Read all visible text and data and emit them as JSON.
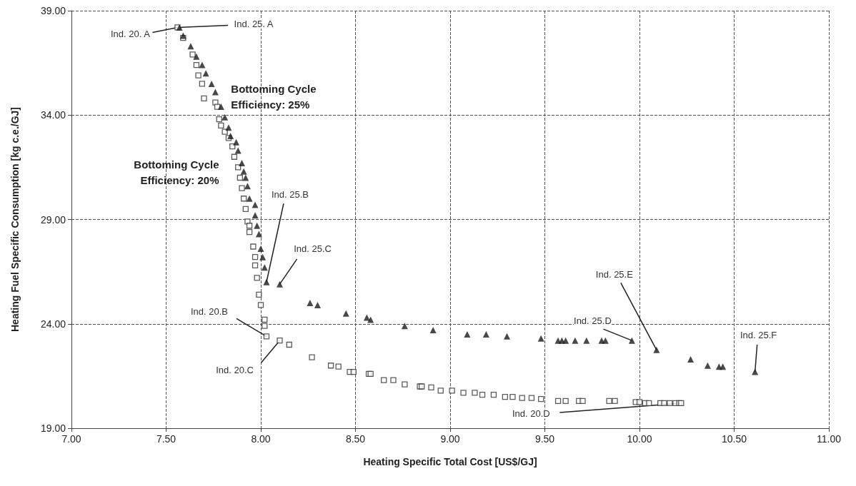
{
  "chart_data": {
    "type": "scatter",
    "xlabel": "Heating Specific Total Cost [US$/GJ]",
    "ylabel": "Heating Fuel Specific Consumption [kg c.e./GJ]",
    "xlim": [
      7,
      11
    ],
    "xticks": [
      {
        "value": 7,
        "label": "7.00"
      },
      {
        "value": 7.5,
        "label": "7.50"
      },
      {
        "value": 8,
        "label": "8.00"
      },
      {
        "value": 8.5,
        "label": "8.50"
      },
      {
        "value": 9,
        "label": "9.00"
      },
      {
        "value": 9.5,
        "label": "9.50"
      },
      {
        "value": 10,
        "label": "10.00"
      },
      {
        "value": 10.5,
        "label": "10.50"
      },
      {
        "value": 11,
        "label": "11.00"
      }
    ],
    "ylim": [
      19,
      39
    ],
    "yticks": [
      {
        "value": 19,
        "label": "19.00"
      },
      {
        "value": 24,
        "label": "24.00"
      },
      {
        "value": 29,
        "label": "29.00"
      },
      {
        "value": 34,
        "label": "34.00"
      },
      {
        "value": 39,
        "label": "39.00"
      }
    ],
    "grid": true,
    "legend": false,
    "series": [
      {
        "name": "Bottoming Cycle Efficiency: 25%",
        "color": "#1a1a1a",
        "marker": "triangle",
        "x": [
          7.57,
          7.59,
          7.63,
          7.66,
          7.69,
          7.71,
          7.74,
          7.76,
          7.79,
          7.81,
          7.83,
          7.84,
          7.87,
          7.88,
          7.9,
          7.91,
          7.92,
          7.93,
          7.94,
          7.97,
          7.97,
          7.98,
          7.99,
          8.0,
          8.01,
          8.02,
          8.03,
          8.1,
          8.26,
          8.3,
          8.45,
          8.56,
          8.58,
          8.76,
          8.91,
          9.09,
          9.19,
          9.3,
          9.48,
          9.57,
          9.59,
          9.61,
          9.66,
          9.72,
          9.8,
          9.82,
          9.96,
          10.09,
          10.27,
          10.36,
          10.42,
          10.44,
          10.61
        ],
        "values": [
          38.2,
          37.8,
          37.3,
          36.8,
          36.4,
          36.0,
          35.5,
          35.1,
          34.4,
          33.9,
          33.4,
          33.0,
          32.7,
          32.3,
          31.7,
          31.3,
          31.0,
          30.6,
          30.0,
          29.7,
          29.2,
          28.7,
          28.3,
          27.6,
          27.2,
          26.7,
          26.0,
          25.9,
          25.0,
          24.9,
          24.5,
          24.3,
          24.2,
          23.9,
          23.7,
          23.5,
          23.5,
          23.4,
          23.3,
          23.2,
          23.2,
          23.2,
          23.2,
          23.2,
          23.2,
          23.2,
          23.2,
          22.75,
          22.3,
          22.0,
          21.95,
          21.95,
          21.7
        ]
      },
      {
        "name": "Bottoming Cycle Efficiency: 20%",
        "color": "#333333",
        "marker": "square",
        "x": [
          7.56,
          7.59,
          7.64,
          7.66,
          7.67,
          7.69,
          7.7,
          7.76,
          7.77,
          7.78,
          7.79,
          7.81,
          7.83,
          7.85,
          7.86,
          7.88,
          7.89,
          7.9,
          7.91,
          7.92,
          7.93,
          7.94,
          7.94,
          7.96,
          7.97,
          7.97,
          7.98,
          7.99,
          8.0,
          8.02,
          8.02,
          8.03,
          8.1,
          8.15,
          8.27,
          8.37,
          8.41,
          8.47,
          8.49,
          8.57,
          8.58,
          8.65,
          8.7,
          8.76,
          8.84,
          8.85,
          8.9,
          8.95,
          9.01,
          9.07,
          9.13,
          9.17,
          9.23,
          9.29,
          9.33,
          9.38,
          9.43,
          9.48,
          9.57,
          9.61,
          9.68,
          9.7,
          9.84,
          9.87,
          9.98,
          10.0,
          10.03,
          10.05,
          10.11,
          10.13,
          10.16,
          10.19,
          10.21,
          10.22
        ],
        "values": [
          38.2,
          37.7,
          36.9,
          36.4,
          35.9,
          35.5,
          34.8,
          34.6,
          34.4,
          33.8,
          33.5,
          33.2,
          32.9,
          32.5,
          32.0,
          31.5,
          31.0,
          30.5,
          30.0,
          29.5,
          28.9,
          28.7,
          28.4,
          27.7,
          27.2,
          26.8,
          26.2,
          25.4,
          24.9,
          24.2,
          23.9,
          23.4,
          23.2,
          23.0,
          22.4,
          22.0,
          21.95,
          21.7,
          21.7,
          21.6,
          21.6,
          21.3,
          21.3,
          21.1,
          21.0,
          21.0,
          20.95,
          20.8,
          20.8,
          20.7,
          20.7,
          20.6,
          20.6,
          20.5,
          20.5,
          20.45,
          20.45,
          20.4,
          20.3,
          20.3,
          20.3,
          20.3,
          20.3,
          20.3,
          20.25,
          20.25,
          20.2,
          20.2,
          20.2,
          20.2,
          20.2,
          20.2,
          20.2,
          20.2
        ]
      }
    ],
    "annotations": [
      {
        "text": "Ind. 20. A",
        "x": 7.56,
        "y": 38.2
      },
      {
        "text": "Ind. 25. A",
        "x": 7.57,
        "y": 38.2
      },
      {
        "text": "Ind. 25.B",
        "x": 8.03,
        "y": 26.0
      },
      {
        "text": "Ind. 25.C",
        "x": 8.1,
        "y": 25.9
      },
      {
        "text": "Ind. 20.B",
        "x": 8.03,
        "y": 23.4
      },
      {
        "text": "Ind. 20.C",
        "x": 8.1,
        "y": 23.2
      },
      {
        "text": "Ind. 25.D",
        "x": 9.96,
        "y": 23.2
      },
      {
        "text": "Ind. 25.E",
        "x": 10.09,
        "y": 22.75
      },
      {
        "text": "Ind. 25.F",
        "x": 10.61,
        "y": 21.7
      },
      {
        "text": "Ind. 20.D",
        "x": 10.22,
        "y": 20.2
      }
    ]
  }
}
